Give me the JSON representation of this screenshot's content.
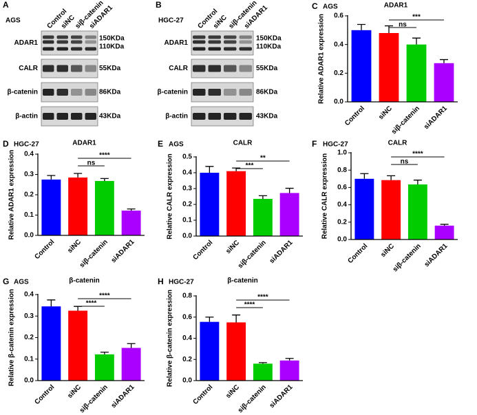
{
  "blots": [
    {
      "panel": "A",
      "cell_line": "AGS",
      "lanes": [
        "Control",
        "siNC",
        "siβ-catenin",
        "siADAR1"
      ],
      "rows": [
        {
          "protein": "ADAR1",
          "sizes": [
            "150KDa",
            "110KDa"
          ]
        },
        {
          "protein": "CALR",
          "sizes": [
            "55KDa"
          ]
        },
        {
          "protein": "β-catenin",
          "sizes": [
            "86KDa"
          ]
        },
        {
          "protein": "β-actin",
          "sizes": [
            "43KDa"
          ]
        }
      ]
    },
    {
      "panel": "B",
      "cell_line": "HGC-27",
      "lanes": [
        "Control",
        "siNC",
        "siβ-catenin",
        "siADAR1"
      ],
      "rows": [
        {
          "protein": "ADAR1",
          "sizes": [
            "150KDa",
            "110KDa"
          ]
        },
        {
          "protein": "CALR",
          "sizes": [
            "55KDa"
          ]
        },
        {
          "protein": "β-catenin",
          "sizes": [
            "86KDa"
          ]
        },
        {
          "protein": "β-actin",
          "sizes": [
            "43KDa"
          ]
        }
      ]
    }
  ],
  "chart_data": [
    {
      "type": "bar",
      "panel": "C",
      "cell_line": "AGS",
      "title": "ADAR1",
      "y_label": "Relative ADAR1 expression",
      "categories": [
        "Control",
        "siNC",
        "siβ-catenin",
        "siADAR1"
      ],
      "colors": [
        "#0000ff",
        "#ff0000",
        "#00cc00",
        "#aa00ff"
      ],
      "values": [
        0.5,
        0.48,
        0.4,
        0.27
      ],
      "errors": [
        0.04,
        0.05,
        0.045,
        0.025
      ],
      "ylim": [
        0,
        0.6
      ],
      "yticks": [
        {
          "value": 0,
          "label": "0.0"
        },
        0.2,
        0.4,
        0.6
      ],
      "significance": [
        {
          "label": "ns",
          "bars": [
            1,
            2
          ]
        },
        {
          "label": "***",
          "bars": [
            1,
            3
          ]
        }
      ]
    },
    {
      "type": "bar",
      "panel": "D",
      "cell_line": "HGC-27",
      "title": "ADAR1",
      "y_label": "Relative ADAR1 expression",
      "categories": [
        "Control",
        "siNC",
        "siβ-catenin",
        "siADAR1"
      ],
      "colors": [
        "#0000ff",
        "#ff0000",
        "#00cc00",
        "#aa00ff"
      ],
      "values": [
        0.275,
        0.285,
        0.268,
        0.122
      ],
      "errors": [
        0.02,
        0.02,
        0.012,
        0.008
      ],
      "ylim": [
        0,
        0.4
      ],
      "yticks": [
        {
          "value": 0,
          "label": "0.0"
        },
        0.1,
        0.2,
        0.3,
        0.4
      ],
      "significance": [
        {
          "label": "ns",
          "bars": [
            1,
            2
          ]
        },
        {
          "label": "****",
          "bars": [
            1,
            3
          ]
        }
      ]
    },
    {
      "type": "bar",
      "panel": "E",
      "cell_line": "AGS",
      "title": "CALR",
      "y_label": "Relative CALR expression",
      "categories": [
        "Control",
        "siNC",
        "siβ-catenin",
        "siADAR1"
      ],
      "colors": [
        "#0000ff",
        "#ff0000",
        "#00cc00",
        "#aa00ff"
      ],
      "values": [
        0.4,
        0.41,
        0.235,
        0.272
      ],
      "errors": [
        0.04,
        0.02,
        0.02,
        0.03
      ],
      "ylim": [
        0,
        0.5
      ],
      "yticks": [
        {
          "value": 0,
          "label": "0.0"
        },
        0.1,
        0.2,
        0.3,
        0.4,
        0.5
      ],
      "significance": [
        {
          "label": "***",
          "bars": [
            1,
            2
          ]
        },
        {
          "label": "**",
          "bars": [
            1,
            3
          ]
        }
      ]
    },
    {
      "type": "bar",
      "panel": "F",
      "cell_line": "HGC-27",
      "title": "CALR",
      "y_label": "Relative CALR expression",
      "categories": [
        "Control",
        "siNC",
        "siβ-catenin",
        "siADAR1"
      ],
      "colors": [
        "#0000ff",
        "#ff0000",
        "#00cc00",
        "#aa00ff"
      ],
      "values": [
        0.7,
        0.685,
        0.635,
        0.16
      ],
      "errors": [
        0.06,
        0.05,
        0.05,
        0.015
      ],
      "ylim": [
        0,
        1.0
      ],
      "yticks": [
        {
          "value": 0,
          "label": "0.0"
        },
        0.2,
        0.4,
        0.6,
        0.8,
        {
          "value": 1.0,
          "label": "1.0"
        }
      ],
      "significance": [
        {
          "label": "ns",
          "bars": [
            1,
            2
          ]
        },
        {
          "label": "****",
          "bars": [
            1,
            3
          ]
        }
      ]
    },
    {
      "type": "bar",
      "panel": "G",
      "cell_line": "AGS",
      "title": "β-catenin",
      "y_label": "Relative β-catenin expression",
      "categories": [
        "Control",
        "siNC",
        "siβ-catenin",
        "siADAR1"
      ],
      "colors": [
        "#0000ff",
        "#ff0000",
        "#00cc00",
        "#aa00ff"
      ],
      "values": [
        0.345,
        0.325,
        0.122,
        0.152
      ],
      "errors": [
        0.03,
        0.02,
        0.01,
        0.02
      ],
      "ylim": [
        0,
        0.4
      ],
      "yticks": [
        {
          "value": 0,
          "label": "0.0"
        },
        0.1,
        0.2,
        0.3,
        0.4
      ],
      "significance": [
        {
          "label": "****",
          "bars": [
            1,
            2
          ]
        },
        {
          "label": "****",
          "bars": [
            1,
            3
          ]
        }
      ]
    },
    {
      "type": "bar",
      "panel": "H",
      "cell_line": "HGC-27",
      "title": "β-catenin",
      "y_label": "Relative β-catenin expression",
      "categories": [
        "Control",
        "siNC",
        "siβ-catenin",
        "siADAR1"
      ],
      "colors": [
        "#0000ff",
        "#ff0000",
        "#00cc00",
        "#aa00ff"
      ],
      "values": [
        0.555,
        0.55,
        0.16,
        0.19
      ],
      "errors": [
        0.045,
        0.07,
        0.01,
        0.02
      ],
      "ylim": [
        0,
        0.8
      ],
      "yticks": [
        {
          "value": 0,
          "label": "0.0"
        },
        0.2,
        0.4,
        0.6,
        0.8
      ],
      "significance": [
        {
          "label": "****",
          "bars": [
            1,
            2
          ]
        },
        {
          "label": "****",
          "bars": [
            1,
            3
          ]
        }
      ]
    }
  ]
}
